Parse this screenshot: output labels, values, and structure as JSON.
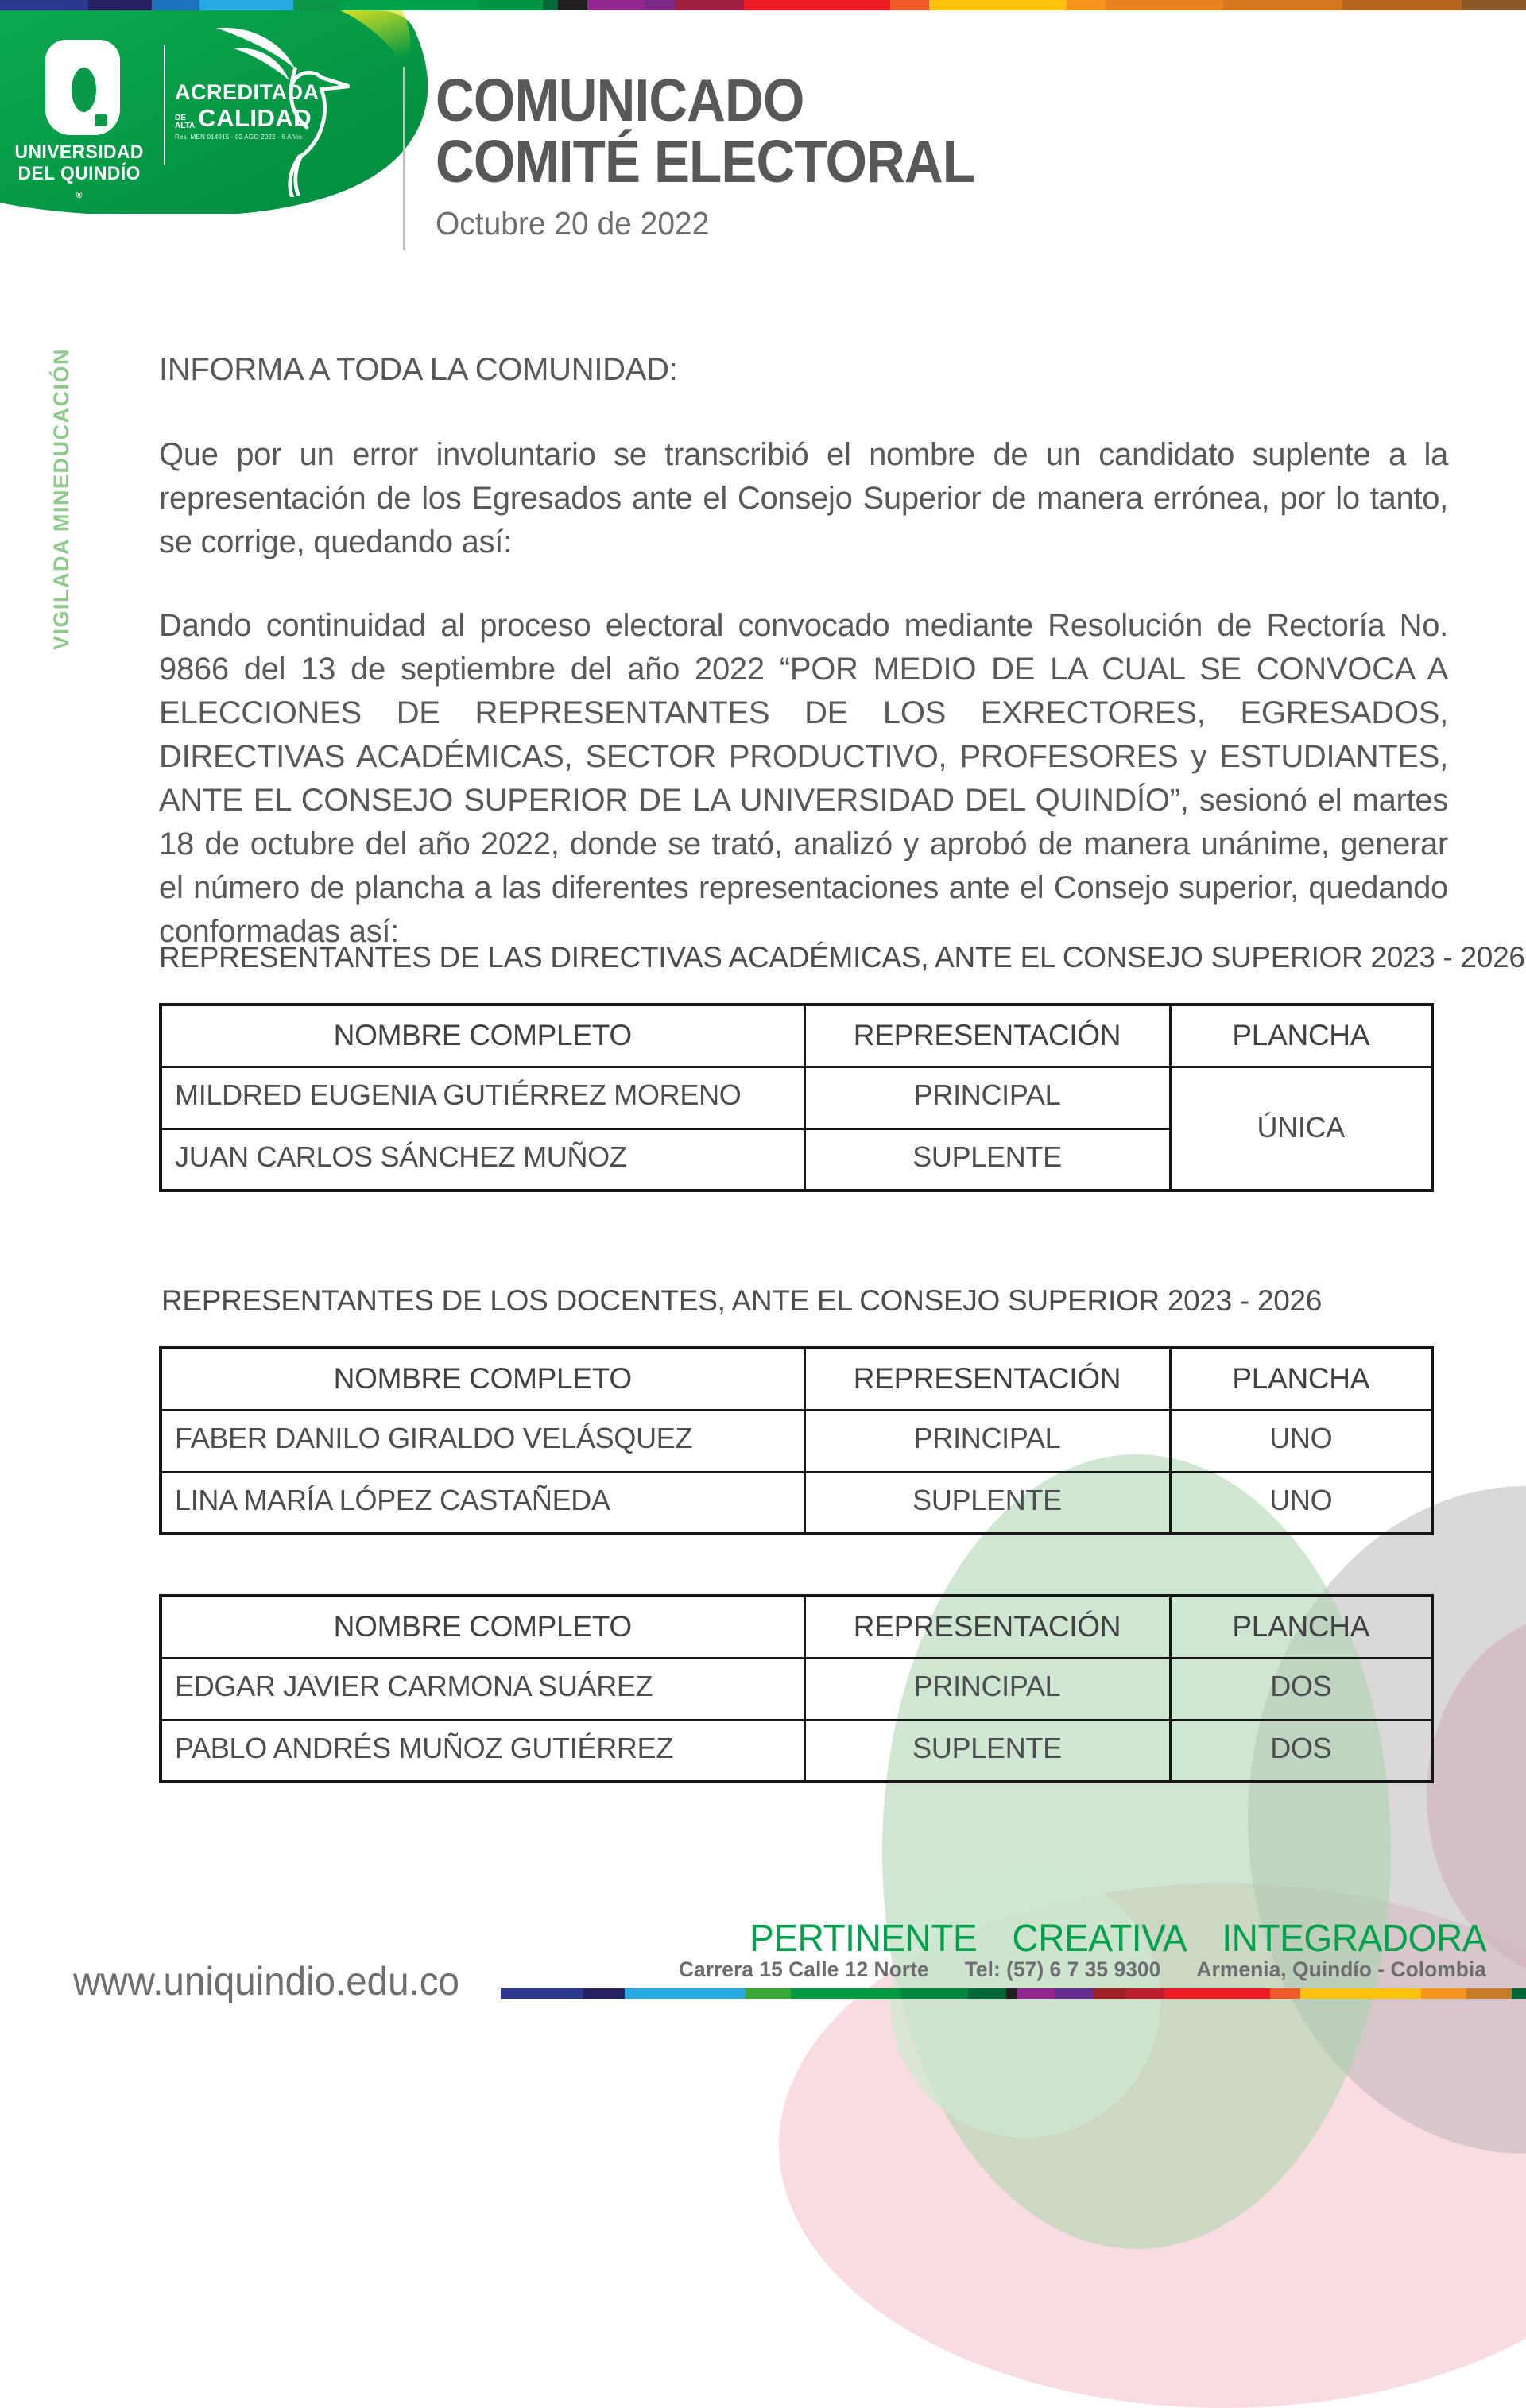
{
  "header": {
    "title_line1": "COMUNICADO",
    "title_line2": "COMITÉ ELECTORAL",
    "date": "Octubre 20 de 2022",
    "logo": {
      "institution_line1": "UNIVERSIDAD",
      "institution_line2": "DEL QUINDÍO",
      "registered_mark": "®",
      "accredited_line1": "ACREDITADA",
      "accredited_de": "DE",
      "accredited_alta": "ALTA",
      "accredited_line2": "CALIDAD",
      "resolution": "Res. MEN 014915 - 02 AGO 2022 - 6 Años"
    }
  },
  "sidebar": {
    "vigilada": "VIGILADA MINEDUCACIÓN"
  },
  "body": {
    "salutation": "INFORMA A TODA LA COMUNIDAD:",
    "paragraph1": "Que por un error involuntario se transcribió el nombre de un candidato suplente a la representación de los Egresados ante el Consejo Superior de manera errónea, por lo tanto, se corrige, quedando así:",
    "paragraph2": "Dando continuidad al proceso electoral convocado mediante Resolución de Rectoría No. 9866 del 13 de septiembre del año 2022 “POR MEDIO DE LA CUAL SE CONVOCA A ELECCIONES DE REPRESENTANTES DE LOS EXRECTORES, EGRESADOS, DIRECTIVAS ACADÉMICAS, SECTOR PRODUCTIVO, PROFESORES y ESTUDIANTES, ANTE EL CONSEJO SUPERIOR DE LA UNIVERSIDAD DEL QUINDÍO”, sesionó el martes 18 de octubre del año 2022, donde se trató, analizó y aprobó de manera unánime, generar el número de plancha a las diferentes representaciones ante el Consejo superior, quedando conformadas así:"
  },
  "tables": [
    {
      "heading": "REPRESENTANTES DE LAS DIRECTIVAS ACADÉMICAS, ANTE EL CONSEJO SUPERIOR 2023 - 2026",
      "columns": [
        "NOMBRE COMPLETO",
        "REPRESENTACIÓN",
        "PLANCHA"
      ],
      "rows": [
        [
          "MILDRED EUGENIA GUTIÉRREZ MORENO",
          "PRINCIPAL"
        ],
        [
          "JUAN CARLOS SÁNCHEZ MUÑOZ",
          "SUPLENTE"
        ]
      ],
      "merged_plancha": "ÚNICA"
    },
    {
      "heading": "REPRESENTANTES DE LOS DOCENTES, ANTE EL CONSEJO SUPERIOR  2023 - 2026",
      "columns": [
        "NOMBRE COMPLETO",
        "REPRESENTACIÓN",
        "PLANCHA"
      ],
      "rows": [
        [
          "FABER DANILO GIRALDO VELÁSQUEZ",
          "PRINCIPAL",
          "UNO"
        ],
        [
          "LINA MARÍA LÓPEZ CASTAÑEDA",
          "SUPLENTE",
          "UNO"
        ]
      ]
    },
    {
      "heading": "",
      "columns": [
        "NOMBRE COMPLETO",
        "REPRESENTACIÓN",
        "PLANCHA"
      ],
      "rows": [
        [
          "EDGAR JAVIER CARMONA SUÁREZ",
          "PRINCIPAL",
          "DOS"
        ],
        [
          "PABLO ANDRÉS MUÑOZ GUTIÉRREZ",
          "SUPLENTE",
          "DOS"
        ]
      ]
    }
  ],
  "footer": {
    "website": "www.uniquindio.edu.co",
    "slogan_word1": "PERTINENTE",
    "slogan_word2": "CREATIVA",
    "slogan_word3": "INTEGRADORA",
    "address": "Carrera 15 Calle 12 Norte",
    "phone": "Tel: (57) 6 7 35 9300",
    "city": "Armenia, Quindío - Colombia"
  },
  "colors": {
    "brand_green": "#089a48",
    "slogan_green": "#00a14c",
    "watermark_green": "#90c98c",
    "text_gray": "#58595b",
    "title_gray": "#57585a",
    "table_border": "#161616"
  },
  "top_bar": {
    "segments": [
      {
        "c": "#2b3990",
        "w": 111
      },
      {
        "c": "#262262",
        "w": 80
      },
      {
        "c": "#1c75bc",
        "w": 60
      },
      {
        "c": "#27aae1",
        "w": 118
      },
      {
        "c": "#0e9648",
        "w": 56
      },
      {
        "c": "#00a14b",
        "w": 178
      },
      {
        "c": "#009444",
        "w": 80
      },
      {
        "c": "#006838",
        "w": 19
      },
      {
        "c": "#231f20",
        "w": 37
      },
      {
        "c": "#92278f",
        "w": 73
      },
      {
        "c": "#7b2982",
        "w": 37
      },
      {
        "c": "#9e1f40",
        "w": 87
      },
      {
        "c": "#ed1c24",
        "w": 184
      },
      {
        "c": "#f15a29",
        "w": 49
      },
      {
        "c": "#fdc10e",
        "w": 173
      },
      {
        "c": "#f7941d",
        "w": 49
      },
      {
        "c": "#e8821e",
        "w": 148
      },
      {
        "c": "#d4781f",
        "w": 150
      },
      {
        "c": "#b5651d",
        "w": 150
      },
      {
        "c": "#8c5a28",
        "w": 81
      }
    ]
  },
  "bottom_bar": {
    "segments": [
      {
        "c": "#2b3990",
        "w": 104
      },
      {
        "c": "#262262",
        "w": 52
      },
      {
        "c": "#27aae1",
        "w": 152
      },
      {
        "c": "#39a935",
        "w": 57
      },
      {
        "c": "#009a44",
        "w": 138
      },
      {
        "c": "#00853e",
        "w": 85
      },
      {
        "c": "#006838",
        "w": 48
      },
      {
        "c": "#231f20",
        "w": 14
      },
      {
        "c": "#92278f",
        "w": 47
      },
      {
        "c": "#662d91",
        "w": 48
      },
      {
        "c": "#9e1f28",
        "w": 42
      },
      {
        "c": "#be1e2d",
        "w": 48
      },
      {
        "c": "#ed1c24",
        "w": 133
      },
      {
        "c": "#f15a29",
        "w": 38
      },
      {
        "c": "#fdc10e",
        "w": 152
      },
      {
        "c": "#f7941d",
        "w": 57
      },
      {
        "c": "#c77b28",
        "w": 57
      },
      {
        "c": "#006838",
        "w": 18
      }
    ]
  }
}
